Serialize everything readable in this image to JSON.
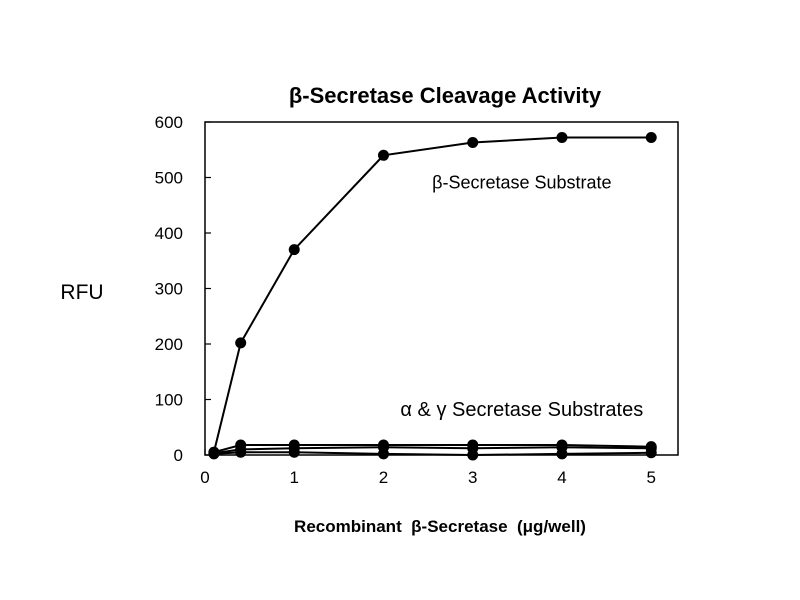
{
  "chart_data": {
    "type": "line",
    "title": "β-Secretase Cleavage Activity",
    "xlabel": "Recombinant  β-Secretase  (μg/well)",
    "ylabel": "RFU",
    "xlim": [
      0,
      5.3
    ],
    "ylim": [
      0,
      600
    ],
    "x_ticks": [
      0,
      1,
      2,
      3,
      4,
      5
    ],
    "y_ticks": [
      0,
      100,
      200,
      300,
      400,
      500,
      600
    ],
    "grid": false,
    "legend": "none",
    "annotations": [
      {
        "text": "β-Secretase Substrate",
        "x": 3.55,
        "y": 480
      },
      {
        "text": "α & γ Secretase Substrates",
        "x": 3.55,
        "y": 70
      }
    ],
    "series": [
      {
        "x": [
          0.1,
          0.4,
          1,
          2,
          3,
          4,
          5
        ],
        "y": [
          5,
          202,
          370,
          540,
          563,
          572,
          572
        ]
      },
      {
        "x": [
          0.1,
          0.4,
          1,
          2,
          3,
          4,
          5
        ],
        "y": [
          5,
          18,
          18,
          18,
          18,
          18,
          15
        ]
      },
      {
        "x": [
          0.1,
          0.4,
          1,
          2,
          3,
          4,
          5
        ],
        "y": [
          3,
          10,
          12,
          14,
          12,
          14,
          12
        ]
      },
      {
        "x": [
          0.1,
          0.4,
          1,
          2,
          3,
          4,
          5
        ],
        "y": [
          2,
          5,
          5,
          2,
          0,
          2,
          4
        ]
      }
    ]
  }
}
